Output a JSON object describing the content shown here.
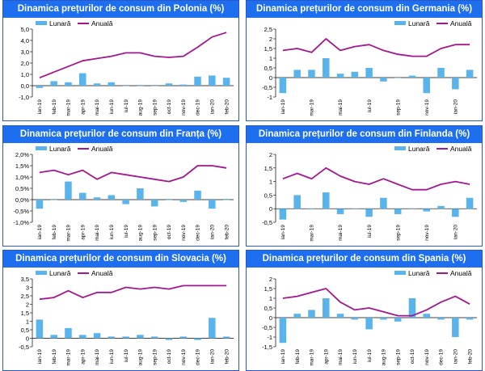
{
  "colors": {
    "title_bg": "#1e6ff0",
    "bar": "#5ab4ec",
    "line": "#a3178f",
    "border": "#2b58c9"
  },
  "legend": {
    "monthly": "Lunară",
    "annual": "Anuală"
  },
  "chart_data": [
    {
      "id": "polonia",
      "type": "bar+line",
      "title": "Dinamica prețurilor de consum din Polonia (%)",
      "categories": [
        "ian-19",
        "feb-19",
        "mar-19",
        "apr-19",
        "mai-19",
        "iun-19",
        "iul-19",
        "aug-19",
        "sep-19",
        "oct-19",
        "nov-19",
        "dec-19",
        "ian-20",
        "feb-20"
      ],
      "series": [
        {
          "name": "Lunară",
          "kind": "bar",
          "values": [
            -0.2,
            0.4,
            0.3,
            1.1,
            0.2,
            0.3,
            0.0,
            0.0,
            0.0,
            0.2,
            0.1,
            0.8,
            0.9,
            0.7
          ]
        },
        {
          "name": "Anuală",
          "kind": "line",
          "values": [
            0.7,
            1.2,
            1.7,
            2.2,
            2.4,
            2.6,
            2.9,
            2.9,
            2.6,
            2.5,
            2.6,
            3.4,
            4.3,
            4.7
          ]
        }
      ],
      "ylim": [
        -1.0,
        5.0
      ],
      "yticks": [
        -1.0,
        0.0,
        1.0,
        2.0,
        3.0,
        4.0,
        5.0
      ],
      "ytick_labels": [
        "-1,0",
        "0,0",
        "1,0",
        "2,0",
        "3,0",
        "4,0",
        "5,0"
      ],
      "xtick_labels": [
        "ian-19",
        "feb-19",
        "mar-19",
        "apr-19",
        "mai-19",
        "iun-19",
        "iul-19",
        "aug-19",
        "sep-19",
        "oct-19",
        "nov-19",
        "dec-19",
        "ian-20",
        "feb-20"
      ],
      "legend_position": "top-left"
    },
    {
      "id": "germania",
      "type": "bar+line",
      "title": "Dinamica prețurilor de consum din Germania (%)",
      "categories": [
        "ian-19",
        "feb-19",
        "mar-19",
        "apr-19",
        "mai-19",
        "iun-19",
        "iul-19",
        "aug-19",
        "sep-19",
        "oct-19",
        "nov-19",
        "dec-19",
        "ian-20",
        "feb-20"
      ],
      "series": [
        {
          "name": "Lunară",
          "kind": "bar",
          "values": [
            -0.8,
            0.4,
            0.4,
            1.0,
            0.2,
            0.3,
            0.5,
            -0.2,
            0.0,
            0.1,
            -0.8,
            0.5,
            -0.6,
            0.4
          ]
        },
        {
          "name": "Anuală",
          "kind": "line",
          "values": [
            1.4,
            1.5,
            1.3,
            2.0,
            1.4,
            1.6,
            1.7,
            1.4,
            1.2,
            1.1,
            1.1,
            1.5,
            1.7,
            1.7
          ]
        }
      ],
      "ylim": [
        -1.0,
        2.5
      ],
      "yticks": [
        -1.0,
        -0.5,
        0.0,
        0.5,
        1.0,
        1.5,
        2.0,
        2.5
      ],
      "ytick_labels": [
        "-1",
        "-0,5",
        "0",
        "0,5",
        "1",
        "1,5",
        "2",
        "2,5"
      ],
      "xtick_labels": [
        "ian-19",
        "",
        "mar-19",
        "",
        "mai-19",
        "",
        "iul-19",
        "",
        "sep-19",
        "",
        "nov-19",
        "",
        "ian-20",
        ""
      ],
      "legend_position": "top-right"
    },
    {
      "id": "franta",
      "type": "bar+line",
      "title": "Dinamica prețurilor de consum din Franța (%)",
      "categories": [
        "ian-19",
        "feb-19",
        "mar-19",
        "apr-19",
        "mai-19",
        "iun-19",
        "iul-19",
        "aug-19",
        "sep-19",
        "oct-19",
        "nov-19",
        "dec-19",
        "ian-20",
        "feb-20"
      ],
      "series": [
        {
          "name": "Lunară",
          "kind": "bar",
          "values": [
            -0.4,
            0.0,
            0.8,
            0.3,
            0.1,
            0.2,
            -0.2,
            0.5,
            -0.3,
            0.0,
            -0.1,
            0.4,
            -0.4,
            0.0
          ]
        },
        {
          "name": "Anuală",
          "kind": "line",
          "values": [
            1.2,
            1.3,
            1.1,
            1.3,
            0.9,
            1.2,
            1.1,
            1.0,
            0.9,
            0.8,
            1.0,
            1.5,
            1.5,
            1.4
          ]
        }
      ],
      "ylim": [
        -1.0,
        2.0
      ],
      "yticks": [
        -1.0,
        -0.5,
        0.0,
        0.5,
        1.0,
        1.5,
        2.0
      ],
      "ytick_labels": [
        "-1,0%",
        "-0,5%",
        "0,0%",
        "0,5%",
        "1,0%",
        "1,5%",
        "2,0%"
      ],
      "xtick_labels": [
        "ian-19",
        "feb-19",
        "mar-19",
        "apr-19",
        "mai-19",
        "iun-19",
        "iul-19",
        "aug-19",
        "sep-19",
        "oct-19",
        "nov-19",
        "dec-19",
        "ian-20",
        "feb-20"
      ],
      "legend_position": "top-left"
    },
    {
      "id": "finlanda",
      "type": "bar+line",
      "title": "Dinamica prețurilor de consum din Finlanda (%)",
      "categories": [
        "ian-19",
        "feb-19",
        "mar-19",
        "apr-19",
        "mai-19",
        "iun-19",
        "iul-19",
        "aug-19",
        "sep-19",
        "oct-19",
        "nov-19",
        "dec-19",
        "ian-20",
        "feb-20"
      ],
      "series": [
        {
          "name": "Lunară",
          "kind": "bar",
          "values": [
            -0.4,
            0.5,
            0.0,
            0.6,
            -0.2,
            0.0,
            -0.3,
            0.4,
            -0.2,
            0.0,
            -0.1,
            0.1,
            -0.3,
            0.4
          ]
        },
        {
          "name": "Anuală",
          "kind": "line",
          "values": [
            1.1,
            1.3,
            1.1,
            1.5,
            1.2,
            1.0,
            0.9,
            1.1,
            0.9,
            0.7,
            0.7,
            0.9,
            1.0,
            0.9
          ]
        }
      ],
      "ylim": [
        -0.5,
        2.0
      ],
      "yticks": [
        -0.5,
        0.0,
        0.5,
        1.0,
        1.5,
        2.0
      ],
      "ytick_labels": [
        "-0,5",
        "0",
        "0,5",
        "1",
        "1,5",
        "2"
      ],
      "xtick_labels": [
        "ian-19",
        "",
        "mar-19",
        "",
        "mai-19",
        "",
        "iul-19",
        "",
        "sep-19",
        "",
        "nov-19",
        "",
        "ian-20",
        ""
      ],
      "legend_position": "top-right"
    },
    {
      "id": "slovacia",
      "type": "bar+line",
      "title": "Dinamica prețurilor de consum din Slovacia (%)",
      "categories": [
        "ian-19",
        "feb-19",
        "mar-19",
        "apr-19",
        "mai-19",
        "iun-19",
        "iul-19",
        "aug-19",
        "sep-19",
        "oct-19",
        "nov-19",
        "dec-19",
        "ian-20",
        "feb-20"
      ],
      "series": [
        {
          "name": "Lunară",
          "kind": "bar",
          "values": [
            1.1,
            0.2,
            0.6,
            0.2,
            0.3,
            0.1,
            0.1,
            0.2,
            0.1,
            -0.1,
            0.1,
            -0.1,
            1.2,
            0.1
          ]
        },
        {
          "name": "Anuală",
          "kind": "line",
          "values": [
            2.3,
            2.4,
            2.8,
            2.4,
            2.7,
            2.7,
            3.0,
            2.9,
            3.0,
            2.9,
            3.1,
            3.1,
            3.1,
            3.1
          ]
        }
      ],
      "ylim": [
        -0.5,
        3.5
      ],
      "yticks": [
        -0.5,
        0.0,
        0.5,
        1.0,
        1.5,
        2.0,
        2.5,
        3.0,
        3.5
      ],
      "ytick_labels": [
        "-0,5",
        "0",
        "0,5",
        "1",
        "1,5",
        "2",
        "2,5",
        "3",
        "3,5"
      ],
      "xtick_labels": [
        "ian-19",
        "feb-19",
        "mar-19",
        "apr-19",
        "mai-19",
        "iun-19",
        "iul-19",
        "aug-19",
        "sep-19",
        "oct-19",
        "nov-19",
        "dec-19",
        "ian-20",
        "feb-20"
      ],
      "legend_position": "top-left"
    },
    {
      "id": "spania",
      "type": "bar+line",
      "title": "Dinamica prețurilor de consum din Spania (%)",
      "categories": [
        "ian-19",
        "feb-19",
        "mar-19",
        "apr-19",
        "mai-19",
        "iun-19",
        "iul-19",
        "aug-19",
        "sep-19",
        "oct-19",
        "nov-19",
        "dec-19",
        "ian-20",
        "feb-20"
      ],
      "series": [
        {
          "name": "Lunară",
          "kind": "bar",
          "values": [
            -1.3,
            0.2,
            0.4,
            1.0,
            0.2,
            -0.1,
            -0.6,
            -0.1,
            -0.2,
            1.0,
            0.2,
            -0.1,
            -1.0,
            -0.1
          ]
        },
        {
          "name": "Anuală",
          "kind": "line",
          "values": [
            1.0,
            1.1,
            1.3,
            1.5,
            0.8,
            0.4,
            0.5,
            0.3,
            0.1,
            0.1,
            0.4,
            0.8,
            1.1,
            0.7
          ]
        }
      ],
      "ylim": [
        -1.5,
        2.0
      ],
      "yticks": [
        -1.5,
        -1.0,
        -0.5,
        0.0,
        0.5,
        1.0,
        1.5,
        2.0
      ],
      "ytick_labels": [
        "-1,5",
        "-1",
        "-0,5",
        "0",
        "0,5",
        "1",
        "1,5",
        "2"
      ],
      "xtick_labels": [
        "ian-19",
        "feb-19",
        "mar-19",
        "apr-19",
        "mai-19",
        "iun-19",
        "iul-19",
        "aug-19",
        "sep-19",
        "oct-19",
        "nov-19",
        "dec-19",
        "ian-20",
        "feb-20"
      ],
      "legend_position": "top-right"
    }
  ]
}
